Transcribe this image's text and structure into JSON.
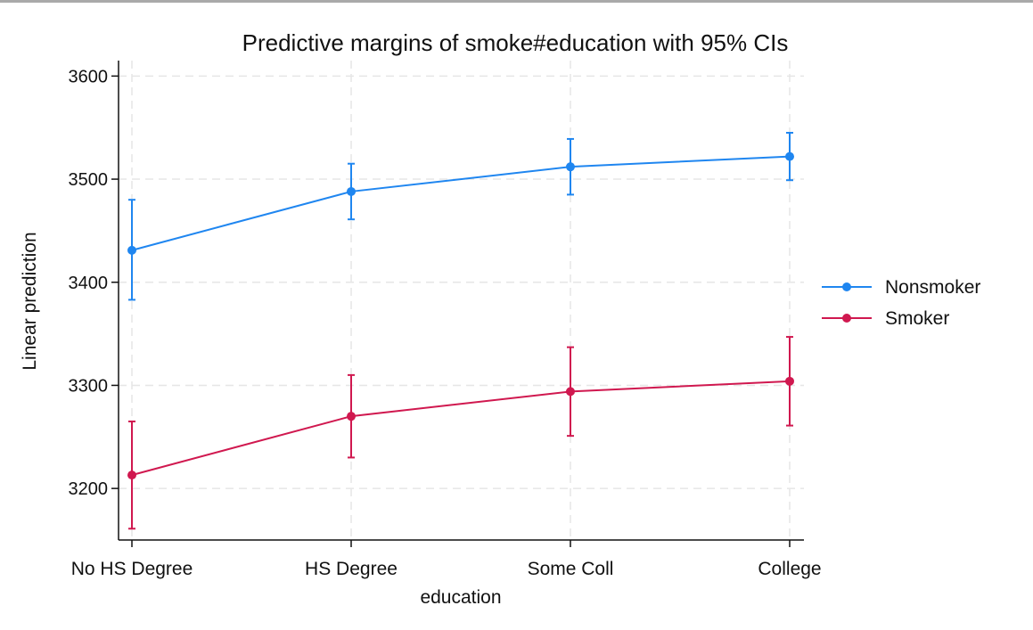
{
  "chart_data": {
    "type": "line",
    "title": "Predictive margins of smoke#education with 95% CIs",
    "xlabel": "education",
    "ylabel": "Linear prediction",
    "categories": [
      "No HS Degree",
      "HS Degree",
      "Some Coll",
      "College"
    ],
    "ylim": [
      3150,
      3615
    ],
    "yticks": [
      3200,
      3300,
      3400,
      3500,
      3600
    ],
    "grid": true,
    "legend_position": "right",
    "error_bars": "95% CI",
    "series": [
      {
        "name": "Nonsmoker",
        "color": "#1f86f0",
        "values": [
          3431,
          3488,
          3512,
          3522
        ],
        "ci_low": [
          3383,
          3461,
          3485,
          3499
        ],
        "ci_high": [
          3480,
          3515,
          3539,
          3545
        ]
      },
      {
        "name": "Smoker",
        "color": "#d0184f",
        "values": [
          3213,
          3270,
          3294,
          3304
        ],
        "ci_low": [
          3161,
          3230,
          3251,
          3261
        ],
        "ci_high": [
          3265,
          3310,
          3337,
          3347
        ]
      }
    ]
  }
}
